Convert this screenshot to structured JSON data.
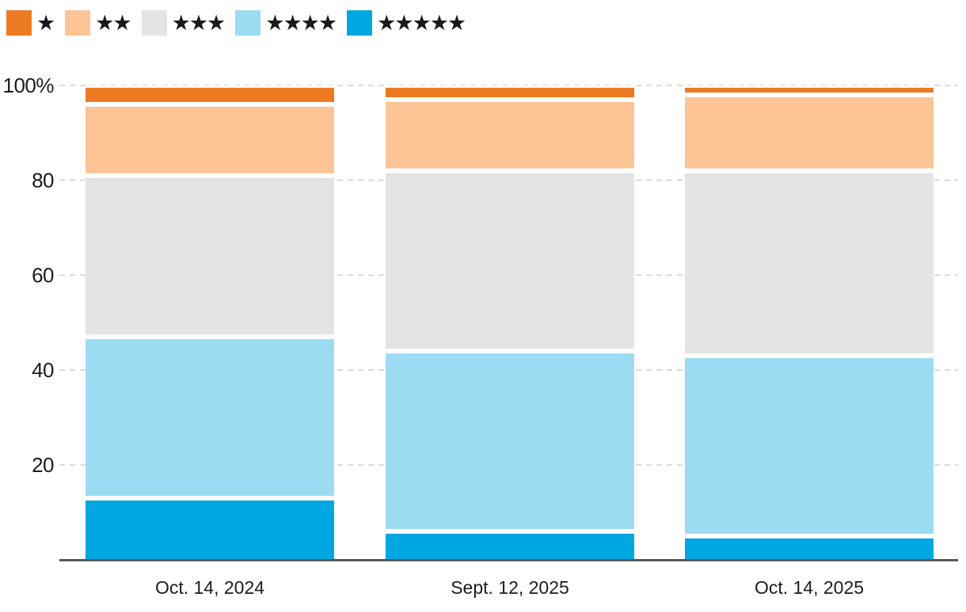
{
  "chart_data": {
    "type": "bar",
    "stacked": true,
    "unit": "%",
    "title": "",
    "xlabel": "",
    "ylabel": "",
    "categories": [
      "Oct. 14, 2024",
      "Sept. 12, 2025",
      "Oct. 14, 2025"
    ],
    "series": [
      {
        "name": "1 star",
        "stars": "★",
        "color": "#ED7A23",
        "values": [
          4,
          3,
          2
        ]
      },
      {
        "name": "2 stars",
        "stars": "★★",
        "color": "#FDC496",
        "values": [
          15,
          15,
          16
        ]
      },
      {
        "name": "3 stars",
        "stars": "★★★",
        "color": "#E5E4E2",
        "values": [
          34,
          38,
          39
        ]
      },
      {
        "name": "4 stars",
        "stars": "★★★★",
        "color": "#9BDCF2",
        "values": [
          34,
          38,
          38
        ]
      },
      {
        "name": "5 stars",
        "stars": "★★★★★",
        "color": "#00A7E1",
        "values": [
          13,
          6,
          5
        ]
      }
    ],
    "stack_order_bottom_to_top": [
      "5 stars",
      "4 stars",
      "3 stars",
      "2 stars",
      "1 star"
    ],
    "ylim": [
      0,
      100
    ],
    "yticks": [
      {
        "value": 100,
        "label": "100%"
      },
      {
        "value": 80,
        "label": "80"
      },
      {
        "value": 60,
        "label": "60"
      },
      {
        "value": 40,
        "label": "40"
      },
      {
        "value": 20,
        "label": "20"
      }
    ],
    "grid": "dashed-horizontal",
    "legend_position": "top-left",
    "colors": {
      "axis_line": "#58595b",
      "gridline": "#dbdbdb",
      "tick_text": "#1c1c1c",
      "legend_star_glyph": "#1a1a1a",
      "background": "#ffffff",
      "segment_gap": "#ffffff"
    }
  }
}
